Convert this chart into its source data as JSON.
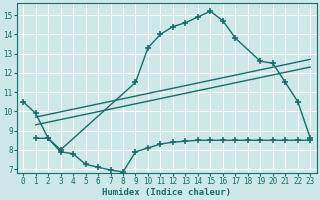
{
  "bg_color": "#cce8e8",
  "grid_color": "#ffffff",
  "line_color": "#1a6b6b",
  "xlabel": "Humidex (Indice chaleur)",
  "xlim": [
    -0.5,
    23.5
  ],
  "ylim": [
    6.8,
    15.6
  ],
  "yticks": [
    7,
    8,
    9,
    10,
    11,
    12,
    13,
    14,
    15
  ],
  "xticks": [
    0,
    1,
    2,
    3,
    4,
    5,
    6,
    7,
    8,
    9,
    10,
    11,
    12,
    13,
    14,
    15,
    16,
    17,
    18,
    19,
    20,
    21,
    22,
    23
  ],
  "curve_top_x": [
    0,
    1,
    2,
    3,
    9,
    10,
    11,
    12,
    13,
    14,
    15,
    16,
    17,
    19,
    20,
    21,
    22,
    23
  ],
  "curve_top_y": [
    10.5,
    9.9,
    8.6,
    8.0,
    11.5,
    13.3,
    14.0,
    14.4,
    14.6,
    14.9,
    15.2,
    14.7,
    13.8,
    12.6,
    12.5,
    11.5,
    10.5,
    8.6
  ],
  "curve_line1_x": [
    1,
    23
  ],
  "curve_line1_y": [
    9.7,
    12.7
  ],
  "curve_line2_x": [
    1,
    23
  ],
  "curve_line2_y": [
    9.3,
    12.3
  ],
  "curve_bot_x": [
    1,
    2,
    3,
    4,
    5,
    6,
    7,
    8,
    9,
    10,
    11,
    12,
    13,
    14,
    15,
    16,
    17,
    18,
    19,
    20,
    21,
    22,
    23
  ],
  "curve_bot_y": [
    8.6,
    8.6,
    7.9,
    7.8,
    7.25,
    7.1,
    6.95,
    6.85,
    7.9,
    8.1,
    8.3,
    8.4,
    8.45,
    8.5,
    8.5,
    8.5,
    8.5,
    8.5,
    8.5,
    8.5,
    8.5,
    8.5,
    8.5
  ]
}
